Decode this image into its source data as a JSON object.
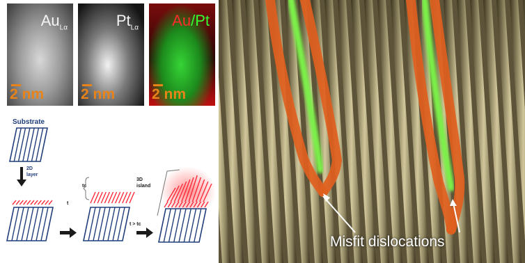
{
  "figure": {
    "maps": [
      {
        "id": "au",
        "label_main": "Au",
        "label_sub": "Lα",
        "scale": "2 nm"
      },
      {
        "id": "pt",
        "label_main": "Pt",
        "label_sub": "Lα",
        "scale": "2 nm"
      },
      {
        "id": "mix",
        "label_a": "Au",
        "label_slash": "/",
        "label_b": "Pt",
        "scale": "2 nm"
      }
    ],
    "schematic": {
      "substrate": "Substrate",
      "layer_2d_line1": "2D",
      "layer_2d_line2": "layer",
      "t_label": "t",
      "tc_label": "tc",
      "island_line1": "3D",
      "island_line2": "island",
      "condition": "t > tc"
    },
    "tem": {
      "caption": "Misfit dislocations",
      "colors": {
        "lattice_light": "#b8ad86",
        "lattice_dark": "#3d3520",
        "dislocation": "#e0601e",
        "core": "#7cf04a"
      }
    }
  }
}
